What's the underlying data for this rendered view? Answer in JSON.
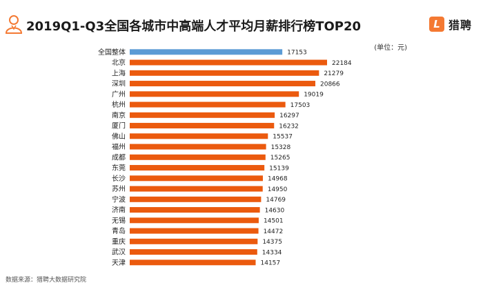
{
  "header": {
    "title": "2019Q1-Q3全国各城市中高端人才平均月薪排行榜TOP20",
    "brand": "猎聘",
    "brand_logo_letter": "L"
  },
  "unit_label": "(单位：元)",
  "source": "数据来源：猎聘大数据研究院",
  "colors": {
    "national": "#5b9bd5",
    "city": "#eb5a0e",
    "brand": "#f47932"
  },
  "chart_data": {
    "type": "bar",
    "orientation": "horizontal",
    "title": "2019Q1-Q3全国各城市中高端人才平均月薪排行榜TOP20",
    "unit": "元",
    "categories": [
      "全国整体",
      "北京",
      "上海",
      "深圳",
      "广州",
      "杭州",
      "南京",
      "厦门",
      "佛山",
      "福州",
      "成都",
      "东莞",
      "长沙",
      "苏州",
      "宁波",
      "济南",
      "无锡",
      "青岛",
      "重庆",
      "武汉",
      "天津"
    ],
    "values": [
      17153,
      22184,
      21279,
      20866,
      19019,
      17503,
      16297,
      16232,
      15537,
      15328,
      15265,
      15139,
      14968,
      14950,
      14769,
      14630,
      14501,
      14472,
      14375,
      14334,
      14157
    ],
    "xlim": [
      0,
      22184
    ],
    "grid": false,
    "legend": "none"
  }
}
